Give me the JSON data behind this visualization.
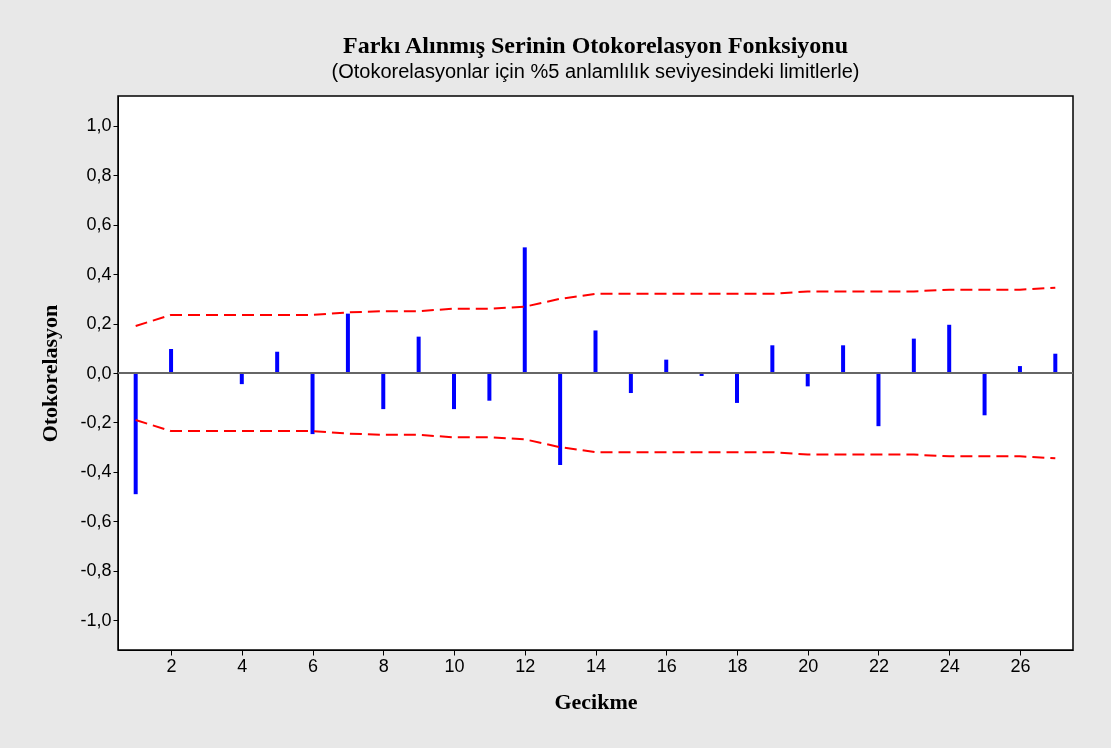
{
  "chart_data": {
    "type": "bar",
    "title": "Farkı Alınmış Serinin Otokorelasyon Fonksiyonu",
    "subtitle": "(Otokorelasyonlar için %5 anlamlılık seviyesindeki limitlerle)",
    "xlabel": "Gecikme",
    "ylabel": "Otokorelasyon",
    "x": [
      1,
      2,
      3,
      4,
      5,
      6,
      7,
      8,
      9,
      10,
      11,
      12,
      13,
      14,
      15,
      16,
      17,
      18,
      19,
      20,
      21,
      22,
      23,
      24,
      25,
      26,
      27
    ],
    "series": [
      {
        "color": "#0000ff",
        "values": [
          -0.49,
          0.097,
          0.0,
          -0.045,
          0.086,
          -0.247,
          0.24,
          -0.146,
          0.147,
          -0.146,
          -0.112,
          0.508,
          -0.372,
          0.172,
          -0.081,
          0.054,
          -0.012,
          -0.121,
          0.112,
          -0.054,
          0.112,
          -0.215,
          0.139,
          0.195,
          -0.171,
          0.028,
          0.078
        ]
      },
      {
        "type": "line",
        "color": "#ff0000",
        "line_style": "dashed",
        "values": [
          0.19,
          0.235,
          0.235,
          0.235,
          0.235,
          0.235,
          0.245,
          0.25,
          0.25,
          0.26,
          0.26,
          0.268,
          0.3,
          0.32,
          0.32,
          0.32,
          0.32,
          0.32,
          0.32,
          0.33,
          0.33,
          0.33,
          0.33,
          0.337,
          0.337,
          0.337,
          0.345
        ]
      },
      {
        "type": "line",
        "color": "#ff0000",
        "line_style": "dashed",
        "values": [
          -0.19,
          -0.235,
          -0.235,
          -0.235,
          -0.235,
          -0.235,
          -0.245,
          -0.25,
          -0.25,
          -0.26,
          -0.26,
          -0.268,
          -0.3,
          -0.32,
          -0.32,
          -0.32,
          -0.32,
          -0.32,
          -0.32,
          -0.33,
          -0.33,
          -0.33,
          -0.33,
          -0.337,
          -0.337,
          -0.337,
          -0.345
        ]
      }
    ],
    "ref_lines": [
      {
        "axis": "y",
        "value": 0,
        "color": "#666666"
      }
    ],
    "xlim": [
      0.5,
      27.5
    ],
    "xticks": [
      2,
      4,
      6,
      8,
      10,
      12,
      14,
      16,
      18,
      20,
      22,
      24,
      26
    ],
    "ylim": [
      -1.12,
      1.12
    ],
    "yticks": [
      {
        "value": -1.0,
        "label": "-1,0"
      },
      {
        "value": -0.8,
        "label": "-0,8"
      },
      {
        "value": -0.6,
        "label": "-0,6"
      },
      {
        "value": -0.4,
        "label": "-0,4"
      },
      {
        "value": -0.2,
        "label": "-0,2"
      },
      {
        "value": 0.0,
        "label": "0,0"
      },
      {
        "value": 0.2,
        "label": "0,2"
      },
      {
        "value": 0.4,
        "label": "0,4"
      },
      {
        "value": 0.6,
        "label": "0,6"
      },
      {
        "value": 0.8,
        "label": "0,8"
      },
      {
        "value": 1.0,
        "label": "1,0"
      }
    ],
    "grid": false
  }
}
